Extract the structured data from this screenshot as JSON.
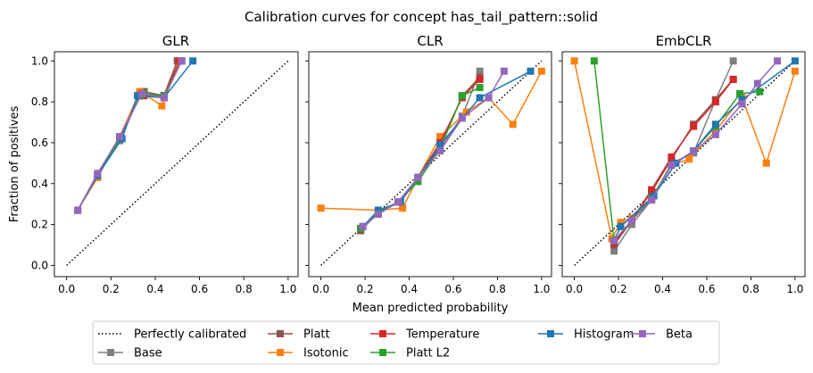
{
  "suptitle": "Calibration curves for concept has_tail_pattern::solid",
  "shared_xlabel": "Mean predicted probability",
  "shared_ylabel": "Fraction of positives",
  "x_ticks": [
    "0.0",
    "0.2",
    "0.4",
    "0.6",
    "0.8",
    "1.0"
  ],
  "y_ticks": [
    "0.0",
    "0.2",
    "0.4",
    "0.6",
    "0.8",
    "1.0"
  ],
  "legend": {
    "placement": "bottom-center",
    "items": [
      {
        "key": "perfect",
        "label": "Perfectly calibrated"
      },
      {
        "key": "base",
        "label": "Base"
      },
      {
        "key": "platt",
        "label": "Platt"
      },
      {
        "key": "isotonic",
        "label": "Isotonic"
      },
      {
        "key": "temperature",
        "label": "Temperature"
      },
      {
        "key": "plattl2",
        "label": "Platt L2"
      },
      {
        "key": "histogram",
        "label": "Histogram"
      },
      {
        "key": "beta",
        "label": "Beta"
      }
    ]
  },
  "colors": {
    "base": "#7f7f7f",
    "platt": "#8c564b",
    "isotonic": "#ff7f0e",
    "temperature": "#d62728",
    "plattl2": "#2ca02c",
    "histogram": "#1f77b4",
    "beta": "#9467bd",
    "perfect": "#000000"
  },
  "chart_data": [
    {
      "type": "line",
      "title": "GLR",
      "xlim": [
        0,
        1
      ],
      "ylim": [
        0,
        1
      ],
      "grid": false,
      "series": [
        {
          "key": "base",
          "name": "Base",
          "points": [
            [
              0.05,
              0.27
            ],
            [
              0.14,
              0.44
            ],
            [
              0.24,
              0.61
            ],
            [
              0.33,
              0.83
            ],
            [
              0.35,
              0.85
            ],
            [
              0.44,
              0.83
            ],
            [
              0.5,
              1.0
            ]
          ]
        },
        {
          "key": "platt",
          "name": "Platt",
          "points": [
            [
              0.05,
              0.27
            ],
            [
              0.14,
              0.44
            ],
            [
              0.24,
              0.62
            ],
            [
              0.33,
              0.83
            ],
            [
              0.35,
              0.85
            ],
            [
              0.44,
              0.83
            ],
            [
              0.5,
              1.0
            ]
          ]
        },
        {
          "key": "isotonic",
          "name": "Isotonic",
          "points": [
            [
              0.05,
              0.27
            ],
            [
              0.14,
              0.43
            ],
            [
              0.24,
              0.63
            ],
            [
              0.33,
              0.85
            ],
            [
              0.35,
              0.84
            ],
            [
              0.43,
              0.78
            ],
            [
              0.51,
              1.0
            ]
          ]
        },
        {
          "key": "temperature",
          "name": "Temperature",
          "points": [
            [
              0.05,
              0.27
            ],
            [
              0.14,
              0.44
            ],
            [
              0.24,
              0.62
            ],
            [
              0.33,
              0.83
            ],
            [
              0.35,
              0.83
            ],
            [
              0.44,
              0.83
            ],
            [
              0.51,
              1.0
            ]
          ]
        },
        {
          "key": "plattl2",
          "name": "Platt L2",
          "points": [
            [
              0.05,
              0.27
            ],
            [
              0.14,
              0.44
            ],
            [
              0.24,
              0.62
            ],
            [
              0.33,
              0.83
            ],
            [
              0.35,
              0.84
            ],
            [
              0.44,
              0.83
            ],
            [
              0.52,
              1.0
            ]
          ]
        },
        {
          "key": "histogram",
          "name": "Histogram",
          "points": [
            [
              0.05,
              0.27
            ],
            [
              0.14,
              0.44
            ],
            [
              0.25,
              0.62
            ],
            [
              0.32,
              0.83
            ],
            [
              0.44,
              0.82
            ],
            [
              0.57,
              1.0
            ]
          ]
        },
        {
          "key": "beta",
          "name": "Beta",
          "points": [
            [
              0.05,
              0.27
            ],
            [
              0.14,
              0.45
            ],
            [
              0.24,
              0.63
            ],
            [
              0.34,
              0.84
            ],
            [
              0.44,
              0.82
            ],
            [
              0.52,
              1.0
            ]
          ]
        }
      ]
    },
    {
      "type": "line",
      "title": "CLR",
      "xlim": [
        0,
        1
      ],
      "ylim": [
        0,
        1
      ],
      "grid": false,
      "series": [
        {
          "key": "base",
          "name": "Base",
          "points": [
            [
              0.18,
              0.17
            ],
            [
              0.26,
              0.26
            ],
            [
              0.36,
              0.31
            ],
            [
              0.44,
              0.43
            ],
            [
              0.54,
              0.57
            ],
            [
              0.64,
              0.73
            ],
            [
              0.72,
              0.95
            ]
          ]
        },
        {
          "key": "platt",
          "name": "Platt",
          "points": [
            [
              0.18,
              0.17
            ],
            [
              0.26,
              0.26
            ],
            [
              0.36,
              0.31
            ],
            [
              0.44,
              0.43
            ],
            [
              0.54,
              0.58
            ],
            [
              0.64,
              0.83
            ],
            [
              0.72,
              0.92
            ]
          ]
        },
        {
          "key": "isotonic",
          "name": "Isotonic",
          "points": [
            [
              0.0,
              0.28
            ],
            [
              0.26,
              0.27
            ],
            [
              0.37,
              0.28
            ],
            [
              0.44,
              0.43
            ],
            [
              0.54,
              0.63
            ],
            [
              0.66,
              0.75
            ],
            [
              0.76,
              0.82
            ],
            [
              0.87,
              0.69
            ],
            [
              1.0,
              0.95
            ]
          ]
        },
        {
          "key": "temperature",
          "name": "Temperature",
          "points": [
            [
              0.18,
              0.18
            ],
            [
              0.26,
              0.26
            ],
            [
              0.35,
              0.31
            ],
            [
              0.44,
              0.43
            ],
            [
              0.54,
              0.6
            ],
            [
              0.64,
              0.82
            ],
            [
              0.72,
              0.91
            ]
          ]
        },
        {
          "key": "plattl2",
          "name": "Platt L2",
          "points": [
            [
              0.18,
              0.18
            ],
            [
              0.26,
              0.26
            ],
            [
              0.35,
              0.31
            ],
            [
              0.44,
              0.41
            ],
            [
              0.54,
              0.57
            ],
            [
              0.64,
              0.83
            ],
            [
              0.72,
              0.87
            ]
          ]
        },
        {
          "key": "histogram",
          "name": "Histogram",
          "points": [
            [
              0.19,
              0.19
            ],
            [
              0.26,
              0.27
            ],
            [
              0.36,
              0.31
            ],
            [
              0.44,
              0.43
            ],
            [
              0.54,
              0.59
            ],
            [
              0.72,
              0.82
            ],
            [
              0.95,
              0.95
            ]
          ]
        },
        {
          "key": "beta",
          "name": "Beta",
          "points": [
            [
              0.19,
              0.19
            ],
            [
              0.26,
              0.25
            ],
            [
              0.35,
              0.31
            ],
            [
              0.44,
              0.43
            ],
            [
              0.54,
              0.56
            ],
            [
              0.64,
              0.72
            ],
            [
              0.76,
              0.82
            ],
            [
              0.83,
              0.95
            ]
          ]
        }
      ]
    },
    {
      "type": "line",
      "title": "EmbCLR",
      "xlim": [
        0,
        1
      ],
      "ylim": [
        0,
        1
      ],
      "grid": false,
      "series": [
        {
          "key": "base",
          "name": "Base",
          "points": [
            [
              0.18,
              0.07
            ],
            [
              0.26,
              0.2
            ],
            [
              0.35,
              0.32
            ],
            [
              0.44,
              0.5
            ],
            [
              0.54,
              0.55
            ],
            [
              0.64,
              0.81
            ],
            [
              0.72,
              1.0
            ]
          ]
        },
        {
          "key": "platt",
          "name": "Platt",
          "points": [
            [
              0.18,
              0.1
            ],
            [
              0.26,
              0.22
            ],
            [
              0.35,
              0.36
            ],
            [
              0.44,
              0.52
            ],
            [
              0.54,
              0.69
            ],
            [
              0.64,
              0.81
            ],
            [
              0.72,
              0.91
            ]
          ]
        },
        {
          "key": "isotonic",
          "name": "Isotonic",
          "points": [
            [
              0.0,
              1.0
            ],
            [
              0.17,
              0.13
            ],
            [
              0.21,
              0.21
            ],
            [
              0.26,
              0.23
            ],
            [
              0.35,
              0.32
            ],
            [
              0.44,
              0.49
            ],
            [
              0.52,
              0.52
            ],
            [
              0.64,
              0.66
            ],
            [
              0.76,
              0.82
            ],
            [
              0.87,
              0.5
            ],
            [
              1.0,
              0.95
            ]
          ]
        },
        {
          "key": "temperature",
          "name": "Temperature",
          "points": [
            [
              0.18,
              0.11
            ],
            [
              0.26,
              0.22
            ],
            [
              0.35,
              0.37
            ],
            [
              0.44,
              0.53
            ],
            [
              0.54,
              0.68
            ],
            [
              0.64,
              0.8
            ],
            [
              0.72,
              0.91
            ]
          ]
        },
        {
          "key": "plattl2",
          "name": "Platt L2",
          "points": [
            [
              0.09,
              1.0
            ],
            [
              0.18,
              0.12
            ],
            [
              0.26,
              0.22
            ],
            [
              0.35,
              0.33
            ],
            [
              0.44,
              0.49
            ],
            [
              0.54,
              0.56
            ],
            [
              0.64,
              0.68
            ],
            [
              0.75,
              0.84
            ],
            [
              0.84,
              0.85
            ]
          ]
        },
        {
          "key": "histogram",
          "name": "Histogram",
          "points": [
            [
              0.18,
              0.12
            ],
            [
              0.21,
              0.19
            ],
            [
              0.36,
              0.34
            ],
            [
              0.46,
              0.5
            ],
            [
              0.54,
              0.56
            ],
            [
              0.64,
              0.69
            ],
            [
              0.76,
              0.81
            ],
            [
              1.0,
              1.0
            ]
          ]
        },
        {
          "key": "beta",
          "name": "Beta",
          "points": [
            [
              0.18,
              0.12
            ],
            [
              0.26,
              0.22
            ],
            [
              0.35,
              0.32
            ],
            [
              0.44,
              0.49
            ],
            [
              0.54,
              0.56
            ],
            [
              0.64,
              0.64
            ],
            [
              0.76,
              0.79
            ],
            [
              0.83,
              0.89
            ],
            [
              0.92,
              1.0
            ]
          ]
        }
      ]
    }
  ]
}
